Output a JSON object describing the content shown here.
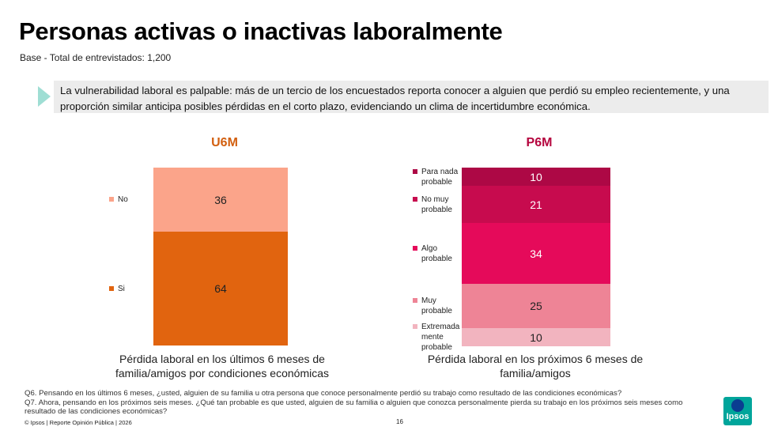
{
  "title": "Personas activas o inactivas laboralmente",
  "subtitle": "Base - Total de entrevistados: 1,200",
  "callout": "La vulnerabilidad laboral es palpable: más de un tercio de los encuestados reporta conocer a alguien que perdió su empleo recientemente, y una proporción similar anticipa posibles pérdidas en el corto plazo, evidenciando un clima de incertidumbre económica.",
  "colors": {
    "u6m_title": "#d25f0f",
    "p6m_title": "#b5053e",
    "callout_arrow": "#9fded4",
    "callout_bg": "#ececec"
  },
  "chart_data": [
    {
      "type": "bar",
      "stacked": true,
      "title": "U6M",
      "caption": "Pérdida laboral en los últimos 6 meses de familia/amigos por condiciones económicas",
      "categories": [
        "U6M"
      ],
      "series": [
        {
          "name": "No",
          "values": [
            36
          ],
          "color": "#fba48a",
          "text_color": "#222222"
        },
        {
          "name": "Si",
          "values": [
            64
          ],
          "color": "#e1640f",
          "text_color": "#222222"
        }
      ],
      "ylim": [
        0,
        100
      ]
    },
    {
      "type": "bar",
      "stacked": true,
      "title": "P6M",
      "caption": "Pérdida laboral en los próximos 6 meses de familia/amigos",
      "categories": [
        "P6M"
      ],
      "series": [
        {
          "name": "Para nada probable",
          "legend_lines": [
            "Para nada",
            "probable"
          ],
          "values": [
            10
          ],
          "color": "#ad0845",
          "text_color": "#ffffff"
        },
        {
          "name": "No muy probable",
          "legend_lines": [
            "No muy",
            "probable"
          ],
          "values": [
            21
          ],
          "color": "#c70b4e",
          "text_color": "#ffffff"
        },
        {
          "name": "Algo probable",
          "legend_lines": [
            "Algo",
            "probable"
          ],
          "values": [
            34
          ],
          "color": "#e50a5a",
          "text_color": "#ffffff"
        },
        {
          "name": "Muy probable",
          "legend_lines": [
            "Muy",
            "probable"
          ],
          "values": [
            25
          ],
          "color": "#ee8496",
          "text_color": "#222222"
        },
        {
          "name": "Extremadamente probable",
          "legend_lines": [
            "Extremada",
            "mente",
            "probable"
          ],
          "values": [
            10
          ],
          "color": "#f2b4bf",
          "text_color": "#222222"
        }
      ],
      "ylim": [
        0,
        100
      ]
    }
  ],
  "footnotes": [
    "Q6. Pensando en los últimos 6 meses, ¿usted, alguien de su familia u otra persona que conoce personalmente perdió su trabajo como resultado de las condiciones económicas?",
    "Q7. Ahora, pensando en los próximos seis meses. ¿Qué tan probable es que usted, alguien de su familia o alguien que conozca personalmente pierda su trabajo en los próximos seis meses como resultado de las condiciones económicas?"
  ],
  "footer": "© Ipsos | Reporte  Opinión Pública | 2026",
  "page_number": "16",
  "logo_text": "Ipsos"
}
